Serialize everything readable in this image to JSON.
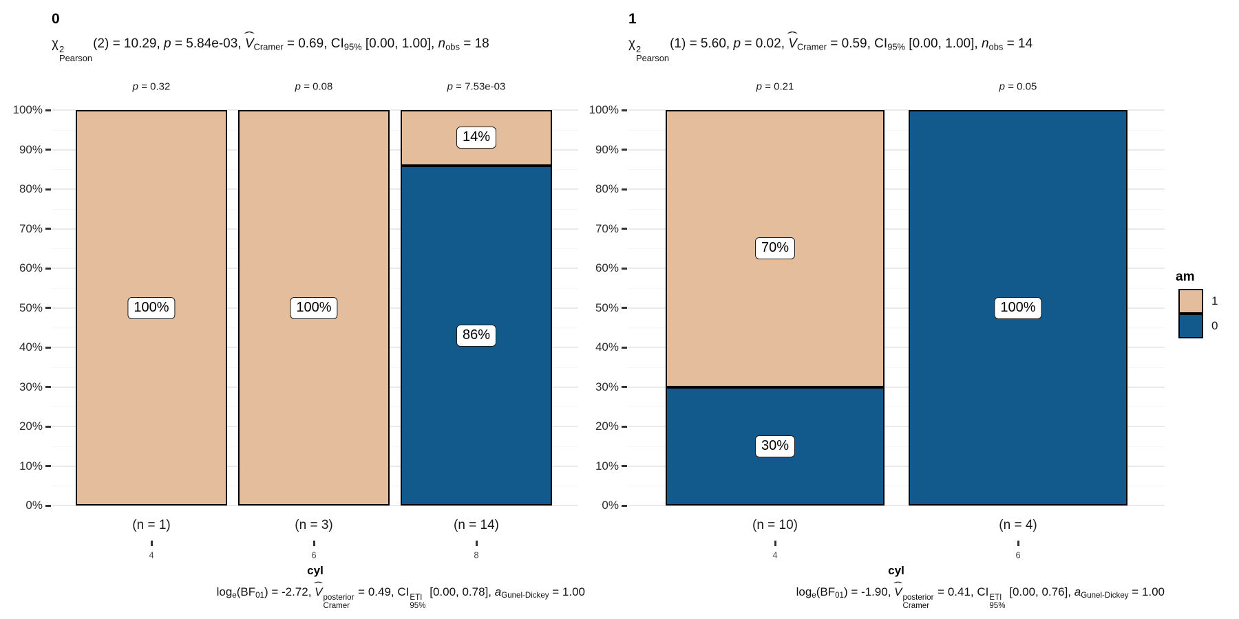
{
  "colors": {
    "group_1_fill": "#E4BE9C",
    "group_0_fill": "#125A8C",
    "bar_border": "#000000",
    "grid_major": "#EAEAEA",
    "grid_minor": "#F5F5F5",
    "axis_text": "#2E2E2E",
    "x_tick_text": "#4D4D4D"
  },
  "y_axis": {
    "ticks": [
      "0%",
      "10%",
      "20%",
      "30%",
      "40%",
      "50%",
      "60%",
      "70%",
      "80%",
      "90%",
      "100%"
    ]
  },
  "legend": {
    "title": "am",
    "items": [
      {
        "label": "1",
        "color": "#E4BE9C"
      },
      {
        "label": "0",
        "color": "#125A8C"
      }
    ]
  },
  "panels": [
    {
      "title": "0",
      "x_axis_label": "cyl",
      "subtitle": [
        {
          "t": "χ"
        },
        {
          "stack": {
            "sup": "2",
            "sub": "Pearson"
          }
        },
        {
          "t": "(2) = 10.29, "
        },
        {
          "t": "p",
          "s": "i"
        },
        {
          "t": " = 5.84e-03, "
        },
        {
          "t": "V",
          "s": "hat"
        },
        {
          "t": "Cramer",
          "s": "sub"
        },
        {
          "t": " = 0.69, CI"
        },
        {
          "t": "95%",
          "s": "sub"
        },
        {
          "t": " [0.00, 1.00], "
        },
        {
          "t": "n",
          "s": "i"
        },
        {
          "t": "obs",
          "s": "sub"
        },
        {
          "t": " = 18"
        }
      ],
      "caption": [
        {
          "t": "log"
        },
        {
          "t": "e",
          "s": "sub"
        },
        {
          "t": "(BF"
        },
        {
          "t": "01",
          "s": "sub"
        },
        {
          "t": ") = -2.72, "
        },
        {
          "t": "V",
          "s": "hat"
        },
        {
          "stack": {
            "sup": "posterior",
            "sub": "Cramer"
          }
        },
        {
          "t": " = 0.49, CI"
        },
        {
          "stack": {
            "sup": "ETI",
            "sub": "95%"
          }
        },
        {
          "t": " [0.00, 0.78], "
        },
        {
          "t": "a",
          "s": "i"
        },
        {
          "t": "Gunel-Dickey",
          "s": "sub"
        },
        {
          "t": " = 1.00"
        }
      ],
      "bars": [
        {
          "x_tick": "4",
          "n_label": "(n = 1)",
          "p_label": [
            {
              "t": "p",
              "s": "i"
            },
            {
              "t": " = 0.32"
            }
          ],
          "segments": [
            {
              "group": "1",
              "pct": 100,
              "label": "100%"
            }
          ]
        },
        {
          "x_tick": "6",
          "n_label": "(n = 3)",
          "p_label": [
            {
              "t": "p",
              "s": "i"
            },
            {
              "t": " = 0.08"
            }
          ],
          "segments": [
            {
              "group": "1",
              "pct": 100,
              "label": "100%"
            }
          ]
        },
        {
          "x_tick": "8",
          "n_label": "(n = 14)",
          "p_label": [
            {
              "t": "p",
              "s": "i"
            },
            {
              "t": " = 7.53e-03"
            }
          ],
          "segments": [
            {
              "group": "1",
              "pct": 14,
              "label": "14%"
            },
            {
              "group": "0",
              "pct": 86,
              "label": "86%"
            }
          ]
        }
      ]
    },
    {
      "title": "1",
      "x_axis_label": "cyl",
      "subtitle": [
        {
          "t": "χ"
        },
        {
          "stack": {
            "sup": "2",
            "sub": "Pearson"
          }
        },
        {
          "t": "(1) = 5.60, "
        },
        {
          "t": "p",
          "s": "i"
        },
        {
          "t": " = 0.02, "
        },
        {
          "t": "V",
          "s": "hat"
        },
        {
          "t": "Cramer",
          "s": "sub"
        },
        {
          "t": " = 0.59, CI"
        },
        {
          "t": "95%",
          "s": "sub"
        },
        {
          "t": " [0.00, 1.00], "
        },
        {
          "t": "n",
          "s": "i"
        },
        {
          "t": "obs",
          "s": "sub"
        },
        {
          "t": " = 14"
        }
      ],
      "caption": [
        {
          "t": "log"
        },
        {
          "t": "e",
          "s": "sub"
        },
        {
          "t": "(BF"
        },
        {
          "t": "01",
          "s": "sub"
        },
        {
          "t": ") = -1.90, "
        },
        {
          "t": "V",
          "s": "hat"
        },
        {
          "stack": {
            "sup": "posterior",
            "sub": "Cramer"
          }
        },
        {
          "t": " = 0.41, CI"
        },
        {
          "stack": {
            "sup": "ETI",
            "sub": "95%"
          }
        },
        {
          "t": " [0.00, 0.76], "
        },
        {
          "t": "a",
          "s": "i"
        },
        {
          "t": "Gunel-Dickey",
          "s": "sub"
        },
        {
          "t": " = 1.00"
        }
      ],
      "bars": [
        {
          "x_tick": "4",
          "n_label": "(n = 10)",
          "p_label": [
            {
              "t": "p",
              "s": "i"
            },
            {
              "t": " = 0.21"
            }
          ],
          "segments": [
            {
              "group": "1",
              "pct": 70,
              "label": "70%"
            },
            {
              "group": "0",
              "pct": 30,
              "label": "30%"
            }
          ]
        },
        {
          "x_tick": "6",
          "n_label": "(n = 4)",
          "p_label": [
            {
              "t": "p",
              "s": "i"
            },
            {
              "t": " = 0.05"
            }
          ],
          "segments": [
            {
              "group": "0",
              "pct": 100,
              "label": "100%"
            }
          ]
        }
      ]
    }
  ],
  "chart_data": {
    "type": "bar",
    "subtype": "stacked-percent-grouped",
    "legend_title": "am",
    "legend_position": "right",
    "legend_entries": [
      "1",
      "0"
    ],
    "xlabel": "cyl",
    "ylabel": "",
    "y_ticks_percent": [
      0,
      10,
      20,
      30,
      40,
      50,
      60,
      70,
      80,
      90,
      100
    ],
    "grid": true,
    "facets": [
      {
        "facet_label": "0",
        "categories": [
          "4",
          "6",
          "8"
        ],
        "series": [
          {
            "name": "1",
            "values": [
              100,
              100,
              14
            ]
          },
          {
            "name": "0",
            "values": [
              0,
              0,
              86
            ]
          }
        ],
        "counts": [
          1,
          3,
          14
        ],
        "bar_p_values": [
          "0.32",
          "0.08",
          "7.53e-03"
        ],
        "subtitle_stats": "chi2_Pearson(2) = 10.29, p = 5.84e-03, V-hat_Cramer = 0.69, CI_95% [0.00, 1.00], n_obs = 18",
        "caption_stats": "log_e(BF_01) = -2.72, V-hat_Cramer^posterior = 0.49, CI_95%^ETI [0.00, 0.78], a_Gunel-Dickey = 1.00"
      },
      {
        "facet_label": "1",
        "categories": [
          "4",
          "6"
        ],
        "series": [
          {
            "name": "1",
            "values": [
              70,
              0
            ]
          },
          {
            "name": "0",
            "values": [
              30,
              100
            ]
          }
        ],
        "counts": [
          10,
          4
        ],
        "bar_p_values": [
          "0.21",
          "0.05"
        ],
        "subtitle_stats": "chi2_Pearson(1) = 5.60, p = 0.02, V-hat_Cramer = 0.59, CI_95% [0.00, 1.00], n_obs = 14",
        "caption_stats": "log_e(BF_01) = -1.90, V-hat_Cramer^posterior = 0.41, CI_95%^ETI [0.00, 0.76], a_Gunel-Dickey = 1.00"
      }
    ]
  }
}
